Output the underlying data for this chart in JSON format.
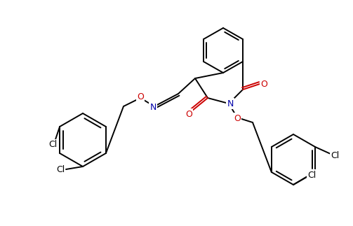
{
  "bg_color": "#ffffff",
  "lc": "#000000",
  "lw": 1.4,
  "fs": 9,
  "figsize": [
    5.03,
    3.23
  ],
  "dpi": 100,
  "colors": {
    "O": "#cc0000",
    "N": "#0000aa",
    "Cl": "#000000",
    "C": "#000000"
  }
}
